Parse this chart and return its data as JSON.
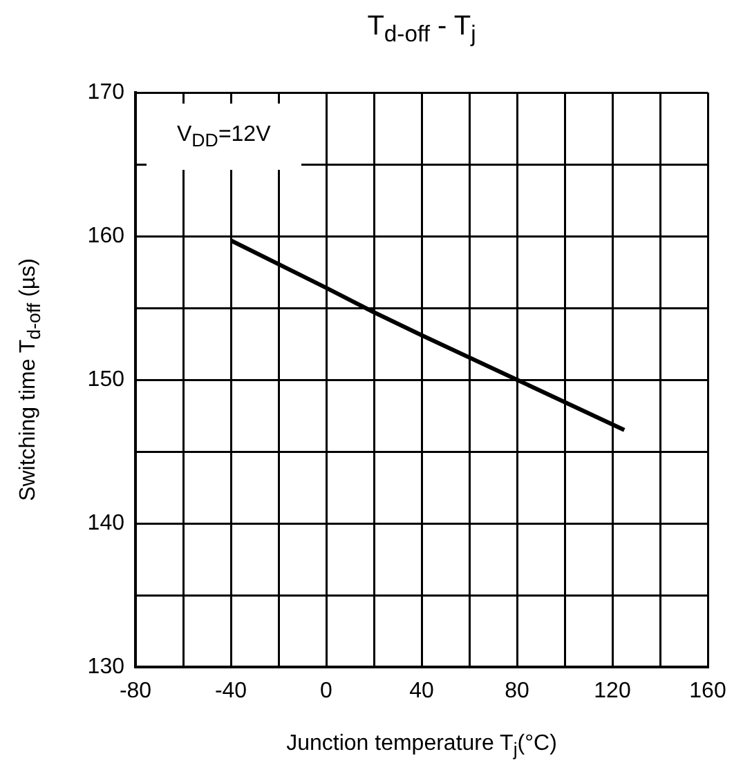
{
  "chart_data": {
    "type": "line",
    "title": "T$_{d-off}$ - T$_{j}$",
    "xlabel": "Junction temperature T$_{j}$(°C)",
    "ylabel": "Switching time T$_{d-off}$ (µs)",
    "annotations": [
      "V$_{DD}$=12V"
    ],
    "x": [
      -40,
      0,
      20,
      40,
      80,
      125
    ],
    "series": [
      {
        "color": "#000000",
        "values": [
          159.7,
          156.4,
          154.7,
          153.1,
          150,
          146.5
        ]
      }
    ],
    "xlim": [
      -80,
      160
    ],
    "xticks": [
      -80,
      {
        "value": -60,
        "label": null
      },
      -40,
      {
        "value": -20,
        "label": null
      },
      0,
      {
        "value": 20,
        "label": null
      },
      40,
      {
        "value": 60,
        "label": null
      },
      80,
      {
        "value": 100,
        "label": null
      },
      120,
      {
        "value": 140,
        "label": null
      },
      160
    ],
    "ylim": [
      130,
      170
    ],
    "yticks": [
      130,
      {
        "value": 135,
        "label": null
      },
      140,
      {
        "value": 145,
        "label": null
      },
      150,
      {
        "value": 155,
        "label": null
      },
      160,
      {
        "value": 165,
        "label": null
      },
      170
    ],
    "grid": true,
    "legend": false,
    "marker": "none",
    "line_style": "solid"
  }
}
